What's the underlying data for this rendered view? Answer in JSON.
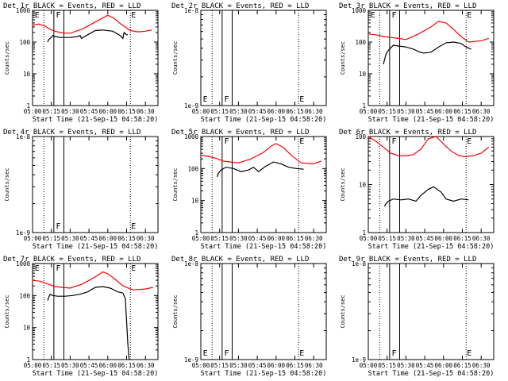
{
  "chart_data": {
    "type": "line",
    "layout": "3x3 grid",
    "x_ticks": [
      "05:00",
      "05:15",
      "05:30",
      "05:45",
      "06:00",
      "06:15",
      "06:30"
    ],
    "xlabel": "Start Time (21-Sep-15 04:58:20)",
    "ylabel": "Counts/sec",
    "colors": {
      "events": "#000000",
      "lld": "#ff0000"
    },
    "markers": {
      "F": {
        "times": [
          "05:17",
          "05:25"
        ],
        "style": "solid"
      },
      "E": {
        "times": [
          "05:09",
          "06:18"
        ],
        "style": "dotted"
      }
    },
    "panels": [
      {
        "title": "Det 1r BLACK = Events, RED = LLD",
        "y_scale": "log",
        "ylim": [
          1,
          1000
        ],
        "y_ticks": [
          "1",
          "10",
          "100",
          "1000"
        ],
        "series": [
          {
            "name": "BLACK = Events",
            "color": "#000000",
            "x": [
              "05:12",
              "05:13",
              "05:14",
              "05:15",
              "05:16",
              "05:18",
              "05:22",
              "05:26",
              "05:30",
              "05:36",
              "05:38",
              "05:39",
              "05:44",
              "05:50",
              "05:56",
              "06:04",
              "06:10",
              "06:12",
              "06:13",
              "06:15",
              "06:16"
            ],
            "y": [
              100,
              120,
              130,
              140,
              160,
              150,
              140,
              140,
              140,
              150,
              160,
              130,
              170,
              230,
              240,
              220,
              160,
              130,
              200,
              170,
              170
            ]
          },
          {
            "name": "RED = LLD",
            "color": "#ff0000",
            "x": [
              "05:00",
              "05:05",
              "05:10",
              "05:14",
              "05:18",
              "05:22",
              "05:26",
              "05:30",
              "05:40",
              "05:50",
              "06:00",
              "06:05",
              "06:10",
              "06:18",
              "06:24",
              "06:30",
              "06:35"
            ],
            "y": [
              340,
              370,
              320,
              250,
              220,
              200,
              190,
              190,
              260,
              430,
              700,
              560,
              380,
              230,
              210,
              220,
              240
            ]
          }
        ],
        "labels_E": [
          {
            "time": "05:01"
          },
          {
            "time": "06:18"
          }
        ],
        "labels_F": [
          {
            "time": "05:18"
          }
        ]
      },
      {
        "title": "Det 2r BLACK = Events, RED = LLD",
        "y_scale": "log",
        "ylim": [
          1e-09,
          1e-08
        ],
        "y_ticks": [
          "1e-9",
          "1e-8"
        ],
        "series": [],
        "labels_E": [
          {
            "time": "05:01"
          },
          {
            "time": "06:18"
          }
        ],
        "labels_F": [
          {
            "time": "05:18"
          }
        ]
      },
      {
        "title": "Det 3r BLACK = Events, RED = LLD",
        "y_scale": "log",
        "ylim": [
          1,
          1000
        ],
        "y_ticks": [
          "1",
          "10",
          "100",
          "1000"
        ],
        "series": [
          {
            "name": "BLACK = Events",
            "color": "#000000",
            "x": [
              "05:12",
              "05:13",
              "05:14",
              "05:16",
              "05:20",
              "05:24",
              "05:30",
              "05:36",
              "05:40",
              "05:44",
              "05:50",
              "05:56",
              "06:02",
              "06:08",
              "06:14",
              "06:18",
              "06:22"
            ],
            "y": [
              20,
              28,
              40,
              55,
              80,
              75,
              70,
              60,
              50,
              45,
              48,
              70,
              95,
              100,
              90,
              70,
              60
            ]
          },
          {
            "name": "RED = LLD",
            "color": "#ff0000",
            "x": [
              "05:00",
              "05:06",
              "05:12",
              "05:18",
              "05:24",
              "05:30",
              "05:40",
              "05:50",
              "05:56",
              "06:02",
              "06:08",
              "06:14",
              "06:20",
              "06:30",
              "06:36"
            ],
            "y": [
              180,
              170,
              150,
              140,
              130,
              120,
              180,
              300,
              450,
              400,
              250,
              150,
              100,
              110,
              130
            ]
          }
        ],
        "labels_E": [
          {
            "time": "05:01"
          },
          {
            "time": "06:18"
          }
        ],
        "labels_F": [
          {
            "time": "05:18"
          }
        ]
      },
      {
        "title": "Det 4r BLACK = Events, RED = LLD",
        "y_scale": "log",
        "ylim": [
          1e-09,
          1e-08
        ],
        "y_ticks": [
          "1e-9",
          "1e-8"
        ],
        "series": [],
        "labels_E": [
          {
            "time": "06:18"
          }
        ],
        "labels_F": [
          {
            "time": "05:18"
          }
        ]
      },
      {
        "title": "Det 5r BLACK = Events, RED = LLD",
        "y_scale": "log",
        "ylim": [
          1,
          1000
        ],
        "y_ticks": [
          "1",
          "10",
          "100",
          "1000"
        ],
        "series": [
          {
            "name": "BLACK = Events",
            "color": "#000000",
            "x": [
              "05:13",
              "05:14",
              "05:16",
              "05:20",
              "05:26",
              "05:32",
              "05:38",
              "05:42",
              "05:46",
              "05:52",
              "05:58",
              "06:04",
              "06:10",
              "06:16",
              "06:22"
            ],
            "y": [
              55,
              70,
              90,
              110,
              100,
              80,
              90,
              110,
              80,
              120,
              160,
              140,
              110,
              100,
              95
            ]
          },
          {
            "name": "RED = LLD",
            "color": "#ff0000",
            "x": [
              "05:00",
              "05:06",
              "05:12",
              "05:18",
              "05:24",
              "05:30",
              "05:40",
              "05:50",
              "05:56",
              "06:00",
              "06:06",
              "06:12",
              "06:20",
              "06:30",
              "06:36"
            ],
            "y": [
              260,
              240,
              210,
              170,
              160,
              150,
              200,
              320,
              500,
              600,
              450,
              260,
              150,
              140,
              170
            ]
          }
        ],
        "labels_E": [
          {
            "time": "06:18"
          }
        ],
        "labels_F": [
          {
            "time": "05:18"
          }
        ]
      },
      {
        "title": "Det 6r BLACK = Events, RED = LLD",
        "y_scale": "log",
        "ylim": [
          1,
          100
        ],
        "y_ticks": [
          "1",
          "10",
          "100"
        ],
        "series": [
          {
            "name": "BLACK = Events",
            "color": "#000000",
            "x": [
              "05:13",
              "05:14",
              "05:16",
              "05:20",
              "05:26",
              "05:32",
              "05:38",
              "05:42",
              "05:48",
              "05:52",
              "05:58",
              "06:02",
              "06:08",
              "06:14",
              "06:20"
            ],
            "y": [
              3.5,
              4,
              4.5,
              5,
              4.8,
              5,
              4.5,
              6,
              8,
              9,
              7,
              5,
              4.5,
              5,
              4.8
            ]
          },
          {
            "name": "RED = LLD",
            "color": "#ff0000",
            "x": [
              "05:00",
              "05:06",
              "05:12",
              "05:18",
              "05:24",
              "05:30",
              "05:36",
              "05:42",
              "05:48",
              "05:54",
              "06:00",
              "06:06",
              "06:12",
              "06:18",
              "06:24",
              "06:30",
              "06:36"
            ],
            "y": [
              100,
              80,
              60,
              45,
              40,
              40,
              42,
              55,
              90,
              100,
              70,
              50,
              40,
              38,
              40,
              45,
              60
            ]
          }
        ],
        "labels_E": [
          {
            "time": "06:18"
          }
        ],
        "labels_F": [
          {
            "time": "05:18"
          }
        ]
      },
      {
        "title": "Det 7r BLACK = Events, RED = LLD",
        "y_scale": "log",
        "ylim": [
          1,
          1000
        ],
        "y_ticks": [
          "1",
          "10",
          "100",
          "1000"
        ],
        "series": [
          {
            "name": "BLACK = Events",
            "color": "#000000",
            "x": [
              "05:12",
              "05:13",
              "05:14",
              "05:16",
              "05:20",
              "05:26",
              "05:32",
              "05:38",
              "05:44",
              "05:50",
              "05:56",
              "06:02",
              "06:08",
              "06:12",
              "06:14",
              "06:16",
              "06:17"
            ],
            "y": [
              70,
              90,
              110,
              100,
              95,
              95,
              100,
              110,
              130,
              180,
              190,
              170,
              130,
              120,
              80,
              3,
              1
            ]
          },
          {
            "name": "RED = LLD",
            "color": "#ff0000",
            "x": [
              "05:00",
              "05:06",
              "05:12",
              "05:18",
              "05:24",
              "05:30",
              "05:40",
              "05:50",
              "05:56",
              "06:00",
              "06:06",
              "06:12",
              "06:20",
              "06:30",
              "06:36"
            ],
            "y": [
              300,
              280,
              230,
              190,
              180,
              170,
              230,
              380,
              550,
              480,
              320,
              200,
              150,
              160,
              180
            ]
          }
        ],
        "labels_E": [
          {
            "time": "05:01"
          },
          {
            "time": "06:18"
          }
        ],
        "labels_F": [
          {
            "time": "05:18"
          }
        ]
      },
      {
        "title": "Det 8r BLACK = Events, RED = LLD",
        "y_scale": "log",
        "ylim": [
          1e-09,
          1e-08
        ],
        "y_ticks": [
          "1e-9",
          "1e-8"
        ],
        "series": [],
        "labels_E": [
          {
            "time": "05:01"
          },
          {
            "time": "06:18"
          }
        ],
        "labels_F": [
          {
            "time": "05:18"
          }
        ]
      },
      {
        "title": "Det 9r BLACK = Events, RED = LLD",
        "y_scale": "log",
        "ylim": [
          1e-09,
          1e-08
        ],
        "y_ticks": [
          "1e-9",
          "1e-8"
        ],
        "series": [],
        "labels_E": [
          {
            "time": "06:18"
          }
        ],
        "labels_F": [
          {
            "time": "05:18"
          }
        ]
      }
    ]
  }
}
